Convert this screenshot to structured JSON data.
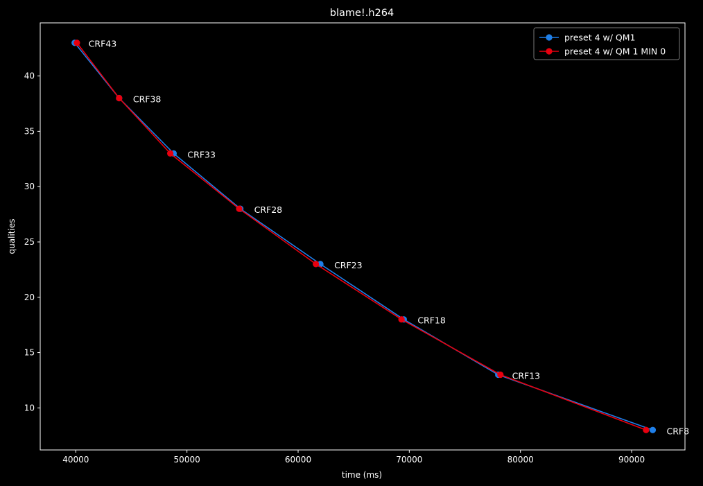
{
  "chart_data": {
    "type": "line",
    "title": "blame!.h264",
    "xlabel": "time (ms)",
    "ylabel": "qualities",
    "xlim": [
      36800,
      94800
    ],
    "ylim": [
      6.2,
      44.8
    ],
    "xticks": [
      40000,
      50000,
      60000,
      70000,
      80000,
      90000
    ],
    "yticks": [
      10,
      15,
      20,
      25,
      30,
      35,
      40
    ],
    "grid": false,
    "legend_position": "top-right",
    "series": [
      {
        "name": "preset 4 w/ QM1",
        "color": "#1f7fe8",
        "x": [
          39900,
          43900,
          48800,
          54800,
          62000,
          69500,
          78000,
          91900
        ],
        "y": [
          43,
          38,
          33,
          28,
          23,
          18,
          13,
          8
        ]
      },
      {
        "name": "preset 4 w/ QM 1 MIN 0",
        "color": "#e8000f",
        "x": [
          40100,
          43900,
          48500,
          54700,
          61600,
          69300,
          78200,
          91300
        ],
        "y": [
          43,
          38,
          33,
          28,
          23,
          18,
          13,
          8
        ]
      }
    ],
    "annotations": [
      {
        "text": "CRF43",
        "x": 39900,
        "y": 43
      },
      {
        "text": "CRF38",
        "x": 43900,
        "y": 38
      },
      {
        "text": "CRF33",
        "x": 48800,
        "y": 33
      },
      {
        "text": "CRF28",
        "x": 54800,
        "y": 28
      },
      {
        "text": "CRF23",
        "x": 62000,
        "y": 23
      },
      {
        "text": "CRF18",
        "x": 69500,
        "y": 18
      },
      {
        "text": "CRF13",
        "x": 78000,
        "y": 13
      },
      {
        "text": "CRF8",
        "x": 91900,
        "y": 8
      }
    ]
  }
}
